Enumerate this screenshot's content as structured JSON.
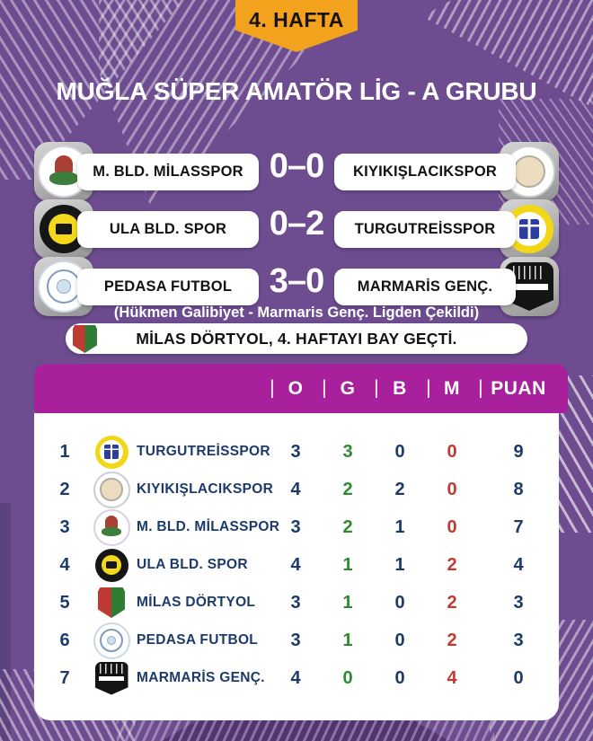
{
  "badge": {
    "label": "4. HAFTA"
  },
  "title": "MUĞLA SÜPER AMATÖR LİG - A GRUBU",
  "matches": [
    {
      "home": "M. BLD. MİLASSPOR",
      "score": "0–0",
      "away": "KIYIKIŞLACIKSPOR",
      "home_logo": "milasspor-crest",
      "away_logo": "kiyikislacikspor-crest"
    },
    {
      "home": "ULA BLD. SPOR",
      "score": "0–2",
      "away": "TURGUTREİSSPOR",
      "home_logo": "ula-bld-spor-crest",
      "away_logo": "turgutreisspor-crest"
    },
    {
      "home": "PEDASA FUTBOL",
      "score": "3–0",
      "away": "MARMARİS GENÇ.",
      "home_logo": "pedasa-futbol-crest",
      "away_logo": "marmaris-genclik-crest"
    }
  ],
  "forfeit_note": "(Hükmen Galibiyet - Marmaris Genç. Ligden Çekildi)",
  "bye_notice": "MİLAS DÖRTYOL, 4. HAFTAYI BAY GEÇTİ.",
  "standings": {
    "separator": "|",
    "headers": [
      "O",
      "G",
      "B",
      "M",
      "PUAN"
    ],
    "rows": [
      {
        "rank": "1",
        "team": "TURGUTREİSSPOR",
        "o": "3",
        "g": "3",
        "b": "0",
        "m": "0",
        "puan": "9",
        "logo": "turgutreisspor-crest"
      },
      {
        "rank": "2",
        "team": "KIYIKIŞLACIKSPOR",
        "o": "4",
        "g": "2",
        "b": "2",
        "m": "0",
        "puan": "8",
        "logo": "kiyikislacikspor-crest"
      },
      {
        "rank": "3",
        "team": "M. BLD. MİLASSPOR",
        "o": "3",
        "g": "2",
        "b": "1",
        "m": "0",
        "puan": "7",
        "logo": "milasspor-crest"
      },
      {
        "rank": "4",
        "team": "ULA BLD. SPOR",
        "o": "4",
        "g": "1",
        "b": "1",
        "m": "2",
        "puan": "4",
        "logo": "ula-bld-spor-crest"
      },
      {
        "rank": "5",
        "team": "MİLAS DÖRTYOL",
        "o": "3",
        "g": "1",
        "b": "0",
        "m": "2",
        "puan": "3",
        "logo": "milas-dortyol-crest"
      },
      {
        "rank": "6",
        "team": "PEDASA FUTBOL",
        "o": "3",
        "g": "1",
        "b": "0",
        "m": "2",
        "puan": "3",
        "logo": "pedasa-futbol-crest"
      },
      {
        "rank": "7",
        "team": "MARMARİS GENÇ.",
        "o": "4",
        "g": "0",
        "b": "0",
        "m": "4",
        "puan": "0",
        "logo": "marmaris-genclik-crest"
      }
    ]
  },
  "colors": {
    "background_purple": "#6d4d90",
    "header_magenta": "#a8209c",
    "badge_orange": "#f2a21d",
    "navy_text": "#1c3a6b",
    "win_green": "#2e8b2d",
    "loss_red": "#c13a31"
  }
}
